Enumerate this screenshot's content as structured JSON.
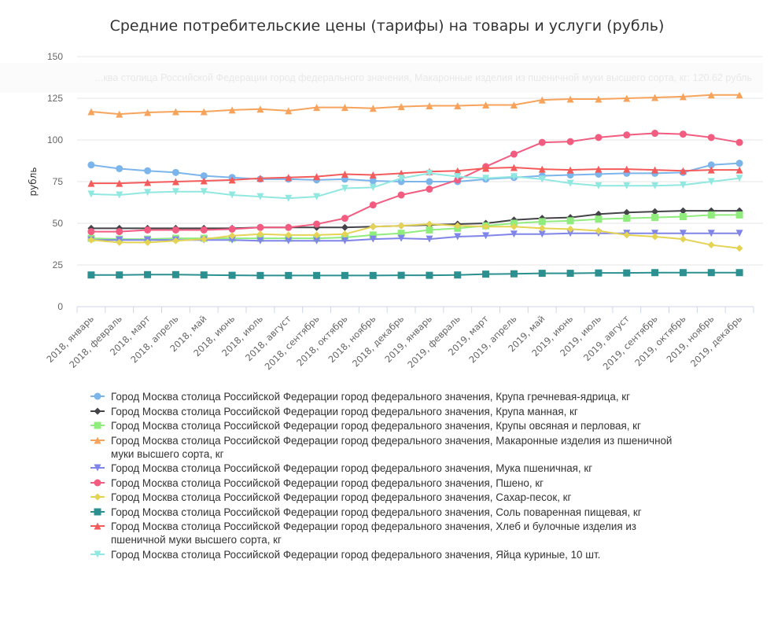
{
  "title": "Средние потребительские цены (тарифы) на товары и услуги (рубль)",
  "tooltip_text": "...ква столица Российской Федерации город федерального значения, Макаронные изделия из пшеничной муки высшего сорта, кг: 120.62 рубль",
  "chart_data": {
    "type": "line",
    "title": "Средние потребительские цены (тарифы) на товары и услуги (рубль)",
    "xlabel": "",
    "ylabel": "рубль",
    "ylim": [
      0,
      150
    ],
    "yticks": [
      0,
      25,
      50,
      75,
      100,
      125,
      150
    ],
    "grid": true,
    "legend_position": "bottom",
    "categories": [
      "2018, январь",
      "2018, февраль",
      "2018, март",
      "2018, апрель",
      "2018, май",
      "2018, июнь",
      "2018, июль",
      "2018, август",
      "2018, сентябрь",
      "2018, октябрь",
      "2018, ноябрь",
      "2018, декабрь",
      "2019, январь",
      "2019, февраль",
      "2019, март",
      "2019, апрель",
      "2019, май",
      "2019, июнь",
      "2019, июль",
      "2019, август",
      "2019, сентябрь",
      "2019, октябрь",
      "2019, ноябрь",
      "2019, декабрь"
    ],
    "series": [
      {
        "name": "Город Москва столица Российской Федерации город федерального значения, Крупа гречневая-ядрица, кг",
        "color": "#7cb5ec",
        "marker": "circle",
        "values": [
          85,
          82.8,
          81.5,
          80.5,
          78.5,
          77.5,
          76.5,
          76.5,
          76,
          76.5,
          75.5,
          75,
          75,
          75,
          76.5,
          77.5,
          78.5,
          79,
          79.5,
          80,
          80,
          80.5,
          85,
          86
        ]
      },
      {
        "name": "Город Москва столица Российской Федерации город федерального значения, Крупа манная, кг",
        "color": "#434348",
        "marker": "diamond",
        "values": [
          47,
          47,
          47,
          47,
          47,
          47,
          47.5,
          47.5,
          47.5,
          47.5,
          48,
          48.5,
          49,
          49.5,
          50,
          52,
          53,
          53.5,
          55.5,
          56.5,
          57,
          57.5,
          57.5,
          57.5
        ]
      },
      {
        "name": "Город Москва столица Российской Федерации город федерального значения, Крупы овсяная и перловая, кг",
        "color": "#90ed7d",
        "marker": "square",
        "values": [
          41,
          40.5,
          40.5,
          41,
          41,
          41,
          41,
          41,
          41,
          41.5,
          43,
          44,
          46,
          47,
          48.5,
          50,
          51,
          51.5,
          52.5,
          53,
          53.5,
          54,
          55,
          55
        ]
      },
      {
        "name": "Город Москва столица Российской Федерации город федерального значения, Макаронные изделия из пшеничной муки высшего сорта, кг",
        "color": "#f7a35c",
        "marker": "triangle",
        "values": [
          117,
          115.5,
          116.5,
          117,
          117,
          118,
          118.5,
          117.5,
          119.5,
          119.5,
          119,
          120,
          120.5,
          120.5,
          121,
          121,
          124,
          124.5,
          124.5,
          125,
          125.5,
          126,
          127,
          127
        ]
      },
      {
        "name": "Город Москва столица Российской Федерации город федерального значения, Мука пшеничная, кг",
        "color": "#8085e9",
        "marker": "triangle-down",
        "values": [
          40,
          40,
          40,
          40,
          40,
          40,
          39.5,
          39.5,
          39.5,
          39.5,
          40.5,
          41,
          40.5,
          42,
          42.5,
          43.5,
          43.5,
          44,
          44,
          44,
          44,
          44,
          44,
          44
        ]
      },
      {
        "name": "Город Москва столица Российской Федерации город федерального значения, Пшено, кг",
        "color": "#f15c80",
        "marker": "circle",
        "values": [
          45,
          45,
          46,
          46,
          46,
          46.5,
          47.5,
          47.5,
          49.5,
          53,
          61,
          67,
          70.5,
          76,
          84,
          91.5,
          98.5,
          99,
          101.5,
          103,
          104,
          103.5,
          101.5,
          98.5
        ]
      },
      {
        "name": "Город Москва столица Российской Федерации город федерального значения, Сахар-песок, кг",
        "color": "#e4d354",
        "marker": "diamond",
        "values": [
          40,
          38.5,
          38.5,
          39.5,
          40.5,
          42.5,
          43.5,
          43,
          43,
          43.5,
          48,
          48.5,
          49.5,
          48.5,
          48,
          48,
          47,
          46.5,
          45.5,
          43,
          42,
          40.5,
          37,
          35
        ]
      },
      {
        "name": "Город Москва столица Российской Федерации город федерального значения, Соль поваренная пищевая, кг",
        "color": "#2b908f",
        "marker": "square",
        "values": [
          19,
          19,
          19.2,
          19.2,
          19,
          18.8,
          18.7,
          18.7,
          18.7,
          18.7,
          18.7,
          18.8,
          18.8,
          19,
          19.5,
          19.7,
          20,
          20,
          20.2,
          20.2,
          20.4,
          20.4,
          20.4,
          20.4
        ]
      },
      {
        "name": "Город Москва столица Российской Федерации город федерального значения, Хлеб и булочные изделия из пшеничной муки высшего сорта, кг",
        "color": "#f45b5b",
        "marker": "triangle",
        "values": [
          74,
          74,
          74.5,
          75,
          75.5,
          76,
          77,
          77.5,
          78,
          79.5,
          79,
          80,
          81,
          81.5,
          83,
          83.5,
          82.5,
          82,
          82.5,
          82.5,
          82,
          81.5,
          82,
          82
        ]
      },
      {
        "name": "Город Москва столица Российской Федерации город федерального значения, Яйца куриные, 10 шт.",
        "color": "#91e8e1",
        "marker": "triangle-down",
        "values": [
          67.5,
          67,
          68.5,
          69,
          69,
          67,
          66,
          65,
          66,
          71,
          71.5,
          77,
          80,
          78,
          77,
          78,
          76.5,
          74,
          72.5,
          72.5,
          72.5,
          73,
          75,
          77
        ]
      }
    ]
  }
}
